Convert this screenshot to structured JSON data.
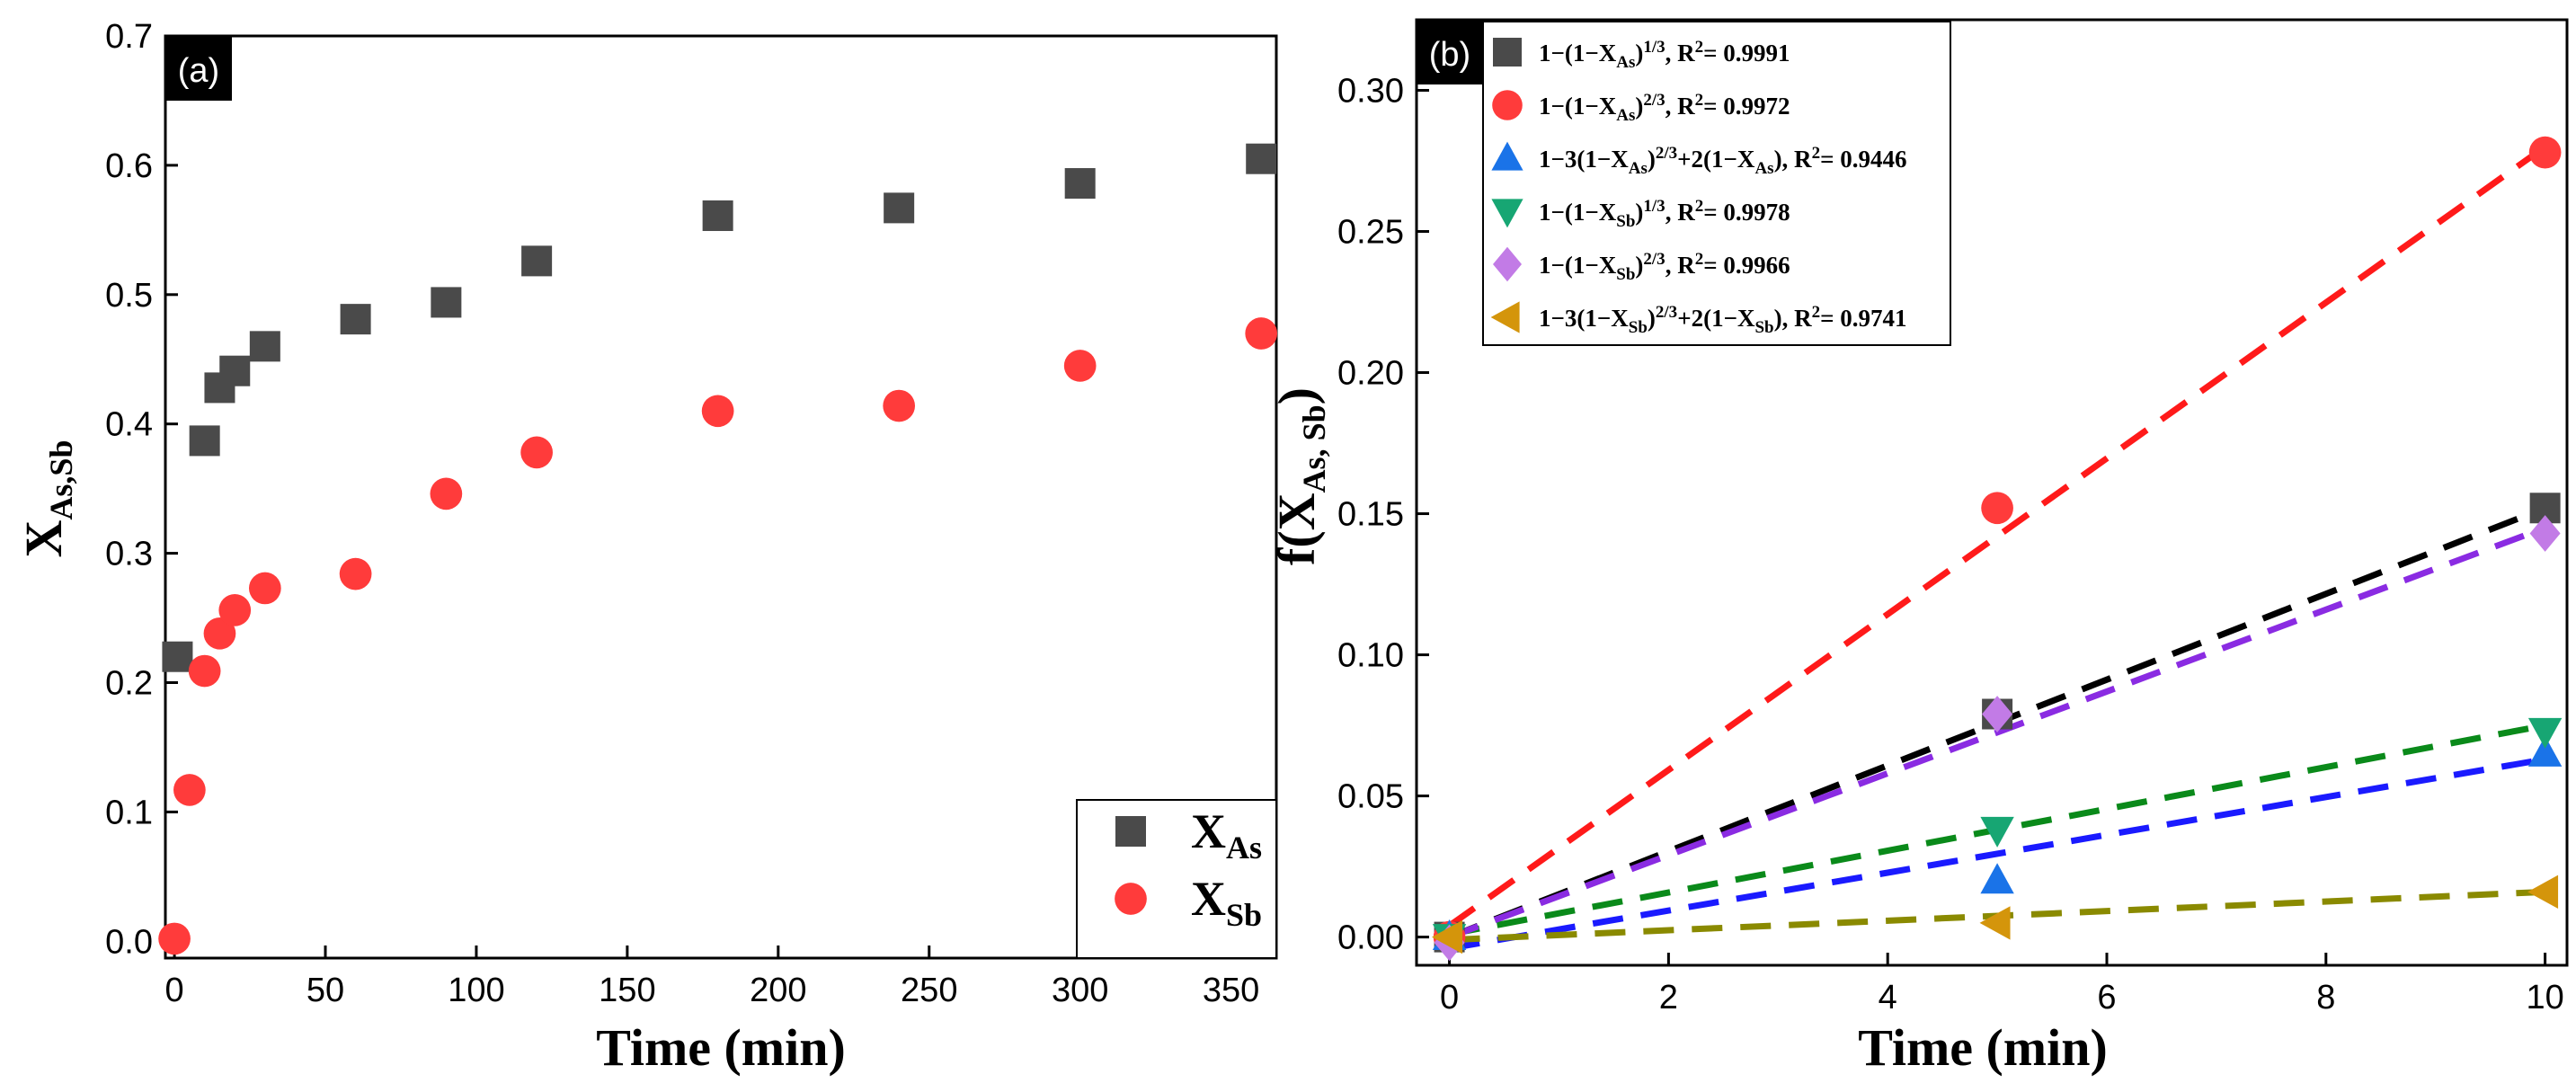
{
  "chart_data": [
    {
      "id": "a",
      "type": "scatter",
      "panel_label": "(a)",
      "xlabel": "Time (min)",
      "ylabel": {
        "base": "X",
        "sub": "As,Sb"
      },
      "xlim": [
        -3,
        365
      ],
      "ylim": [
        -0.013,
        0.7
      ],
      "xticks": [
        0,
        50,
        100,
        150,
        200,
        250,
        300,
        350
      ],
      "yticks": [
        0.0,
        0.1,
        0.2,
        0.3,
        0.4,
        0.5,
        0.6,
        0.7
      ],
      "ytick_decimals": 1,
      "legend_position": "bottom-right",
      "series": [
        {
          "name": "X_As",
          "label": {
            "base": "X",
            "sub": "As"
          },
          "marker": "square",
          "color": "#4a4a4a",
          "x": [
            1,
            10,
            15,
            20,
            30,
            60,
            90,
            120,
            180,
            240,
            300,
            360
          ],
          "y": [
            0.22,
            0.387,
            0.428,
            0.441,
            0.46,
            0.481,
            0.494,
            0.526,
            0.561,
            0.567,
            0.586,
            0.605
          ]
        },
        {
          "name": "X_Sb",
          "label": {
            "base": "X",
            "sub": "Sb"
          },
          "marker": "circle",
          "color": "#ff3b3b",
          "x": [
            0,
            5,
            10,
            15,
            20,
            30,
            60,
            90,
            120,
            180,
            240,
            300,
            360
          ],
          "y": [
            0.002,
            0.117,
            0.209,
            0.238,
            0.256,
            0.273,
            0.284,
            0.346,
            0.378,
            0.41,
            0.414,
            0.445,
            0.47
          ]
        }
      ]
    },
    {
      "id": "b",
      "type": "scatter",
      "panel_label": "(b)",
      "xlabel": "Time (min)",
      "ylabel": {
        "pre": "f(X",
        "sub": "As, Sb",
        "post": ")"
      },
      "xlim": [
        -0.3,
        10.2
      ],
      "ylim": [
        -0.01,
        0.325
      ],
      "xticks": [
        0,
        2,
        4,
        6,
        8,
        10
      ],
      "yticks": [
        0.0,
        0.05,
        0.1,
        0.15,
        0.2,
        0.25,
        0.3
      ],
      "ytick_decimals": 2,
      "legend_position": "top-left",
      "series": [
        {
          "name": "1−(1−X_As)^(1/3)",
          "legend": {
            "parts": [
              "1−(1−X",
              "As",
              ")",
              "1/3",
              ", R",
              "2",
              "= 0.9991"
            ]
          },
          "marker": "square",
          "color": "#4a4a4a",
          "x": [
            0,
            5,
            10
          ],
          "y": [
            0.0,
            0.079,
            0.152
          ],
          "fit": {
            "color": "#000000",
            "x": [
              0,
              10
            ],
            "y": [
              0.0,
              0.152
            ]
          }
        },
        {
          "name": "1−(1−X_As)^(2/3)",
          "legend": {
            "parts": [
              "1−(1−X",
              "As",
              ")",
              "2/3",
              ", R",
              "2",
              "= 0.9972"
            ]
          },
          "marker": "circle",
          "color": "#ff3b3b",
          "x": [
            0,
            5,
            10
          ],
          "y": [
            0.0,
            0.152,
            0.278
          ],
          "fit": {
            "color": "#ff1a1a",
            "x": [
              0,
              10
            ],
            "y": [
              0.004,
              0.28
            ]
          }
        },
        {
          "name": "1−3(1−X_As)^(2/3)+2(1−X_As)",
          "legend": {
            "parts": [
              "1−3(1−X",
              "As",
              ")",
              "2/3",
              "+2(1−X",
              "As",
              "), R",
              "2",
              "= 0.9446"
            ]
          },
          "marker": "triangle-up",
          "color": "#1a73e8",
          "x": [
            0,
            5,
            10
          ],
          "y": [
            0.0,
            0.02,
            0.065
          ],
          "fit": {
            "color": "#1a1aff",
            "x": [
              0,
              10
            ],
            "y": [
              -0.004,
              0.063
            ]
          }
        },
        {
          "name": "1−(1−X_Sb)^(1/3)",
          "legend": {
            "parts": [
              "1−(1−X",
              "Sb",
              ")",
              "1/3",
              ", R",
              "2",
              "= 0.9978"
            ]
          },
          "marker": "triangle-down",
          "color": "#17a673",
          "x": [
            0,
            5,
            10
          ],
          "y": [
            0.0,
            0.038,
            0.073
          ],
          "fit": {
            "color": "#0a8a1a",
            "x": [
              0,
              10
            ],
            "y": [
              0.001,
              0.075
            ]
          }
        },
        {
          "name": "1−(1−X_Sb)^(2/3)",
          "legend": {
            "parts": [
              "1−(1−X",
              "Sb",
              ")",
              "2/3",
              ", R",
              "2",
              "= 0.9966"
            ]
          },
          "marker": "diamond",
          "color": "#c27be6",
          "x": [
            0,
            5,
            10
          ],
          "y": [
            -0.002,
            0.079,
            0.143
          ],
          "fit": {
            "color": "#8a2be2",
            "x": [
              0,
              10
            ],
            "y": [
              0.0,
              0.145
            ]
          }
        },
        {
          "name": "1−3(1−X_Sb)^(2/3)+2(1−X_Sb)",
          "legend": {
            "parts": [
              "1−3(1−X",
              "Sb",
              ")",
              "2/3",
              "+2(1−X",
              "Sb",
              "), R",
              "2",
              "= 0.9741"
            ]
          },
          "marker": "triangle-left",
          "color": "#d4950b",
          "x": [
            0,
            5,
            10
          ],
          "y": [
            0.0,
            0.005,
            0.016
          ],
          "fit": {
            "color": "#8a8a00",
            "x": [
              0,
              10
            ],
            "y": [
              -0.001,
              0.016
            ]
          }
        }
      ]
    }
  ]
}
